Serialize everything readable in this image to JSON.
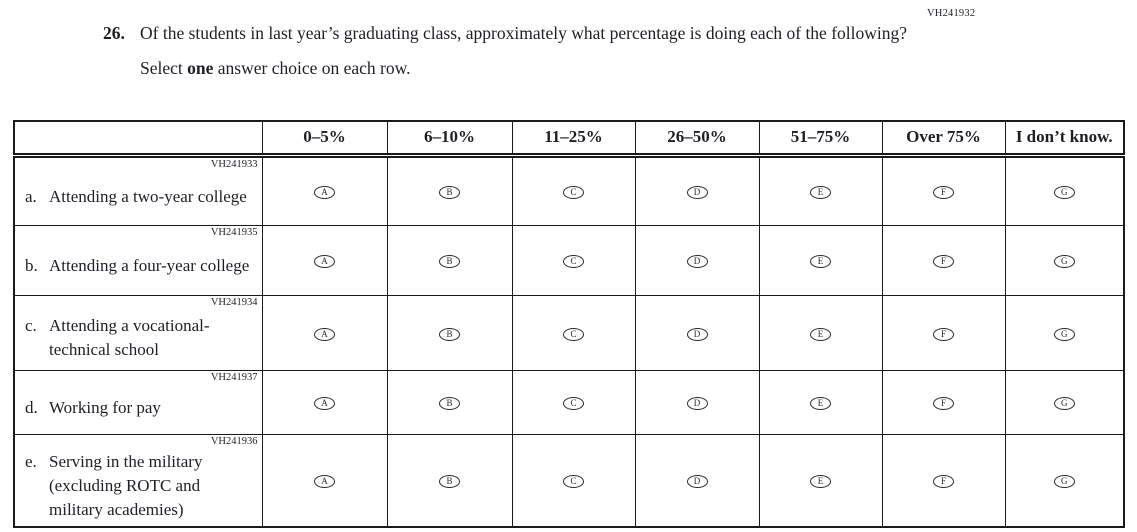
{
  "page": {
    "code_top_right": "VH241932"
  },
  "question": {
    "number": "26.",
    "text": "Of the students in last year’s graduating class, approximately what percentage is doing each of the following?",
    "instruction_prefix": "Select ",
    "instruction_bold": "one",
    "instruction_suffix": " answer choice on each row."
  },
  "table": {
    "column_headers": [
      "0–5%",
      "6–10%",
      "11–25%",
      "26–50%",
      "51–75%",
      "Over 75%",
      "I don’t know."
    ],
    "option_letters": [
      "A",
      "B",
      "C",
      "D",
      "E",
      "F",
      "G"
    ],
    "rows": [
      {
        "code": "VH241933",
        "letter": "a.",
        "label": "Attending a two-year college"
      },
      {
        "code": "VH241935",
        "letter": "b.",
        "label": "Attending a four-year college"
      },
      {
        "code": "VH241934",
        "letter": "c.",
        "label": "Attending a vocational-technical school"
      },
      {
        "code": "VH241937",
        "letter": "d.",
        "label": "Working for pay"
      },
      {
        "code": "VH241936",
        "letter": "e.",
        "label": "Serving in the military (excluding ROTC and military academies)"
      }
    ]
  },
  "colors": {
    "border": "#1a1a1a",
    "text": "#1e1f26"
  }
}
